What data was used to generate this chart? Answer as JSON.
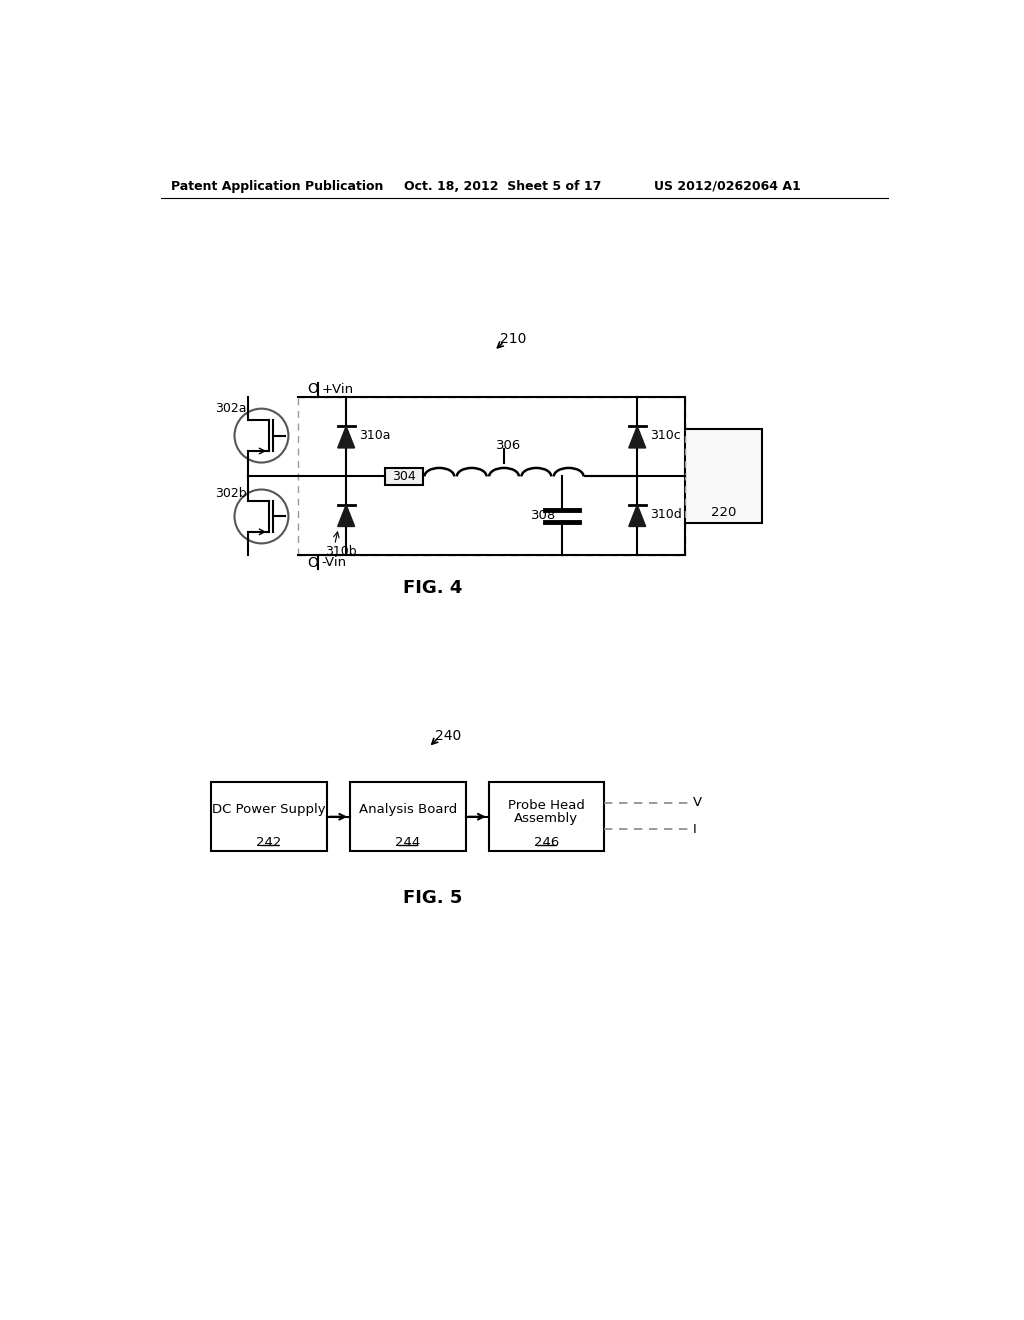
{
  "header_left": "Patent Application Publication",
  "header_mid": "Oct. 18, 2012  Sheet 5 of 17",
  "header_right": "US 2012/0262064 A1",
  "fig4_label": "FIG. 4",
  "fig5_label": "FIG. 5",
  "ref_210": "210",
  "ref_240": "240",
  "bg_color": "#ffffff",
  "line_color": "#000000",
  "dark_line": "#333333"
}
